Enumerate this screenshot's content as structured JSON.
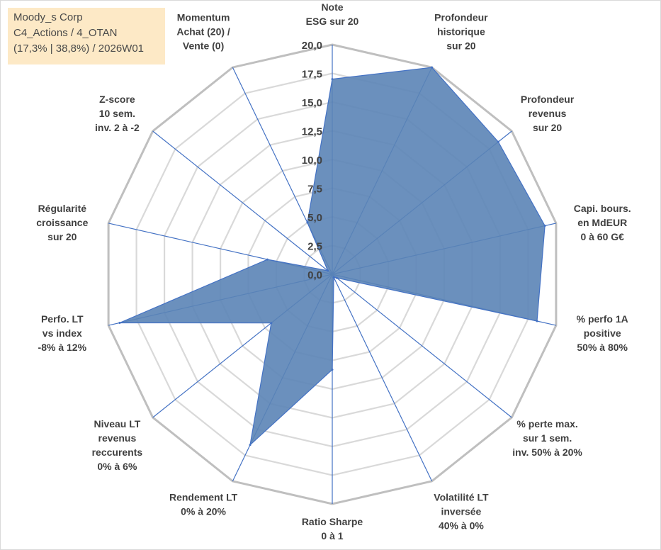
{
  "title_box": {
    "line1": "Moody_s Corp",
    "line2": "C4_Actions / 4_OTAN",
    "line3": "(17,3% | 38,8%) / 2026W01"
  },
  "colors": {
    "fill": "#5b84b6",
    "stroke": "#4472c4",
    "grid_outer": "#bfbfbf",
    "grid_inner": "#d9d9d9",
    "text": "#404040"
  },
  "chart_data": {
    "type": "radar",
    "title": "",
    "rlim": [
      0,
      20
    ],
    "ticks": [
      "0,0",
      "2,5",
      "5,0",
      "7,5",
      "10,0",
      "12,5",
      "15,0",
      "17,5",
      "20,0"
    ],
    "grid": true,
    "axes": [
      {
        "lines": [
          "Note",
          "ESG sur 20"
        ],
        "value": 17.0
      },
      {
        "lines": [
          "Profondeur",
          "historique",
          "sur 20"
        ],
        "value": 20.0
      },
      {
        "lines": [
          "Profondeur",
          "revenus",
          "sur 20"
        ],
        "value": 18.5
      },
      {
        "lines": [
          "Capi. bours.",
          "en MdEUR",
          "0 à 60 G€"
        ],
        "value": 19.0
      },
      {
        "lines": [
          "% perfo 1A",
          "positive",
          "50% à 80%"
        ],
        "value": 18.3
      },
      {
        "lines": [
          "% perte max.",
          "sur 1 sem.",
          "inv. 50% à 20%"
        ],
        "value": 0.5
      },
      {
        "lines": [
          "Volatilité LT",
          "inversée",
          "40% à 0%"
        ],
        "value": 0.3
      },
      {
        "lines": [
          "Ratio Sharpe",
          "0 à 1"
        ],
        "value": 8.3
      },
      {
        "lines": [
          "Rendement LT",
          "0% à 20%"
        ],
        "value": 16.5
      },
      {
        "lines": [
          "Niveau LT",
          "revenus",
          "reccurents",
          "0% à 6%"
        ],
        "value": 6.8
      },
      {
        "lines": [
          "Perfo. LT",
          "vs index",
          "-8% à 12%"
        ],
        "value": 19.0
      },
      {
        "lines": [
          "Régularité",
          "croissance",
          "sur 20"
        ],
        "value": 5.8
      },
      {
        "lines": [
          "Z-score",
          "10 sem.",
          "inv. 2 à -2"
        ],
        "value": 0.5
      },
      {
        "lines": [
          "Momentum",
          "Achat (20) /",
          "Vente (0)"
        ],
        "value": 5.0
      }
    ]
  }
}
